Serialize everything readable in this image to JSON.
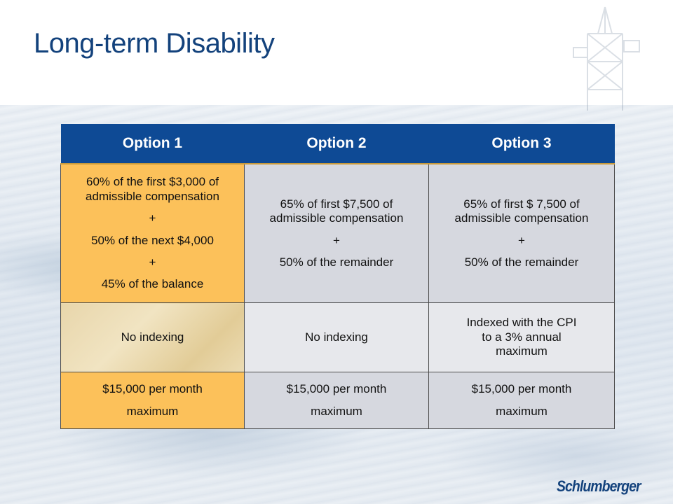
{
  "slide": {
    "title": "Long-term Disability",
    "logo_text": "Schlumberger"
  },
  "table": {
    "headers": [
      "Option 1",
      "Option 2",
      "Option 3"
    ],
    "rows": [
      [
        [
          "60% of the first $3,000 of",
          "admissible compensation",
          "+",
          "50% of the next $4,000",
          "+",
          "45% of the balance"
        ],
        [
          "65% of first $7,500 of",
          "admissible compensation",
          "+",
          "50% of the remainder"
        ],
        [
          "65% of first $ 7,500 of",
          "admissible compensation",
          "+",
          "50% of the remainder"
        ]
      ],
      [
        [
          "No indexing"
        ],
        [
          "No indexing"
        ],
        [
          "Indexed with the CPI",
          "to a 3% annual",
          "maximum"
        ]
      ],
      [
        [
          "$15,000 per month",
          "maximum"
        ],
        [
          "$15,000 per month",
          "maximum"
        ],
        [
          "$15,000 per month",
          "maximum"
        ]
      ]
    ]
  },
  "colors": {
    "title": "#13427c",
    "header_bg": "#0e4a95",
    "option1_highlight": "#fcc15a",
    "cell_gray": "#d6d8df"
  }
}
